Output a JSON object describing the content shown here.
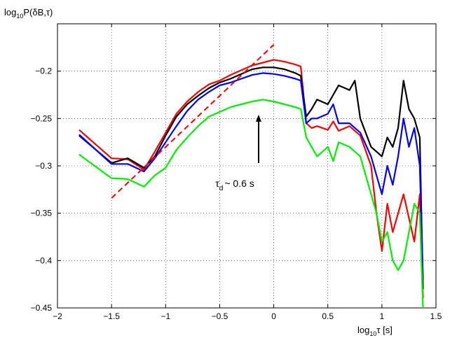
{
  "chart_data": {
    "type": "line",
    "title": "",
    "ylabel": "log10P(δB,τ)",
    "xlabel": "log10τ [s]",
    "xlim": [
      -2,
      1.5
    ],
    "ylim": [
      -0.45,
      -0.15
    ],
    "xticks": [
      -2,
      -1.5,
      -1,
      -0.5,
      0,
      0.5,
      1,
      1.5
    ],
    "xtick_labels": [
      "−2",
      "−1.5",
      "−1",
      "−0.5",
      "0",
      "0.5",
      "1",
      "1.5"
    ],
    "yticks": [
      -0.45,
      -0.4,
      -0.35,
      -0.3,
      -0.25,
      -0.2
    ],
    "ytick_labels": [
      "−0.45",
      "−0.4",
      "−0.35",
      "−0.3",
      "−0.25",
      "−0.2"
    ],
    "grid": true,
    "legend": "none",
    "series": [
      {
        "color": "#ff0000",
        "x": [
          -1.8,
          -1.5,
          -1.35,
          -1.2,
          -1.1,
          -1.0,
          -0.9,
          -0.8,
          -0.7,
          -0.6,
          -0.5,
          -0.4,
          -0.3,
          -0.2,
          -0.1,
          0.0,
          0.1,
          0.2,
          0.25,
          0.3,
          0.35,
          0.4,
          0.5,
          0.55,
          0.6,
          0.7,
          0.8,
          0.9,
          0.95,
          1.0,
          1.05,
          1.1,
          1.15,
          1.2,
          1.3,
          1.35,
          1.38
        ],
        "y": [
          -0.262,
          -0.292,
          -0.293,
          -0.304,
          -0.285,
          -0.265,
          -0.245,
          -0.232,
          -0.222,
          -0.214,
          -0.21,
          -0.204,
          -0.199,
          -0.194,
          -0.191,
          -0.188,
          -0.19,
          -0.193,
          -0.195,
          -0.255,
          -0.26,
          -0.258,
          -0.262,
          -0.253,
          -0.263,
          -0.258,
          -0.268,
          -0.3,
          -0.35,
          -0.39,
          -0.34,
          -0.37,
          -0.35,
          -0.33,
          -0.38,
          -0.33,
          -0.44
        ]
      },
      {
        "color": "#000000",
        "x": [
          -1.8,
          -1.5,
          -1.35,
          -1.2,
          -1.1,
          -1.0,
          -0.9,
          -0.8,
          -0.7,
          -0.6,
          -0.5,
          -0.4,
          -0.3,
          -0.2,
          -0.1,
          0.0,
          0.1,
          0.2,
          0.25,
          0.3,
          0.35,
          0.4,
          0.5,
          0.55,
          0.6,
          0.7,
          0.75,
          0.8,
          0.9,
          1.0,
          1.05,
          1.1,
          1.15,
          1.2,
          1.25,
          1.3,
          1.35,
          1.38
        ],
        "y": [
          -0.268,
          -0.297,
          -0.292,
          -0.302,
          -0.29,
          -0.268,
          -0.248,
          -0.235,
          -0.226,
          -0.218,
          -0.212,
          -0.208,
          -0.203,
          -0.198,
          -0.196,
          -0.196,
          -0.198,
          -0.202,
          -0.205,
          -0.248,
          -0.24,
          -0.23,
          -0.235,
          -0.225,
          -0.215,
          -0.22,
          -0.21,
          -0.25,
          -0.28,
          -0.29,
          -0.27,
          -0.28,
          -0.26,
          -0.21,
          -0.24,
          -0.25,
          -0.27,
          -0.43
        ]
      },
      {
        "color": "#0000ff",
        "x": [
          -1.8,
          -1.5,
          -1.35,
          -1.2,
          -1.1,
          -1.0,
          -0.9,
          -0.8,
          -0.7,
          -0.6,
          -0.5,
          -0.4,
          -0.3,
          -0.2,
          -0.1,
          0.0,
          0.1,
          0.2,
          0.25,
          0.3,
          0.35,
          0.4,
          0.5,
          0.55,
          0.6,
          0.7,
          0.8,
          0.9,
          0.95,
          1.0,
          1.05,
          1.1,
          1.15,
          1.2,
          1.25,
          1.3,
          1.35,
          1.38
        ],
        "y": [
          -0.267,
          -0.298,
          -0.298,
          -0.306,
          -0.292,
          -0.275,
          -0.258,
          -0.242,
          -0.23,
          -0.222,
          -0.215,
          -0.212,
          -0.208,
          -0.204,
          -0.202,
          -0.203,
          -0.205,
          -0.208,
          -0.21,
          -0.255,
          -0.25,
          -0.25,
          -0.245,
          -0.235,
          -0.255,
          -0.255,
          -0.265,
          -0.29,
          -0.31,
          -0.33,
          -0.3,
          -0.32,
          -0.29,
          -0.25,
          -0.28,
          -0.26,
          -0.3,
          -0.42
        ]
      },
      {
        "color": "#00ee00",
        "x": [
          -1.8,
          -1.5,
          -1.35,
          -1.2,
          -1.1,
          -1.0,
          -0.9,
          -0.8,
          -0.7,
          -0.6,
          -0.5,
          -0.4,
          -0.3,
          -0.2,
          -0.1,
          0.0,
          0.1,
          0.2,
          0.25,
          0.3,
          0.35,
          0.4,
          0.5,
          0.55,
          0.6,
          0.7,
          0.8,
          0.9,
          0.95,
          1.0,
          1.05,
          1.1,
          1.15,
          1.2,
          1.25,
          1.3,
          1.35,
          1.38
        ],
        "y": [
          -0.288,
          -0.313,
          -0.314,
          -0.322,
          -0.31,
          -0.302,
          -0.283,
          -0.27,
          -0.258,
          -0.248,
          -0.243,
          -0.238,
          -0.235,
          -0.232,
          -0.23,
          -0.232,
          -0.235,
          -0.238,
          -0.24,
          -0.27,
          -0.28,
          -0.29,
          -0.28,
          -0.295,
          -0.275,
          -0.28,
          -0.29,
          -0.33,
          -0.35,
          -0.38,
          -0.37,
          -0.4,
          -0.41,
          -0.4,
          -0.37,
          -0.34,
          -0.35,
          -0.45
        ]
      }
    ],
    "fit_line": {
      "color": "#ff0000",
      "style": "dashed",
      "x": [
        -1.5,
        0.0
      ],
      "y": [
        -0.334,
        -0.172
      ]
    },
    "annotations": [
      {
        "kind": "arrow",
        "from": [
          -0.14,
          -0.297
        ],
        "to": [
          -0.14,
          -0.246
        ]
      },
      {
        "kind": "text",
        "text": "τ",
        "subscript": "d",
        "rest": "~  0.6 s",
        "x": -0.54,
        "y": -0.322
      }
    ]
  }
}
